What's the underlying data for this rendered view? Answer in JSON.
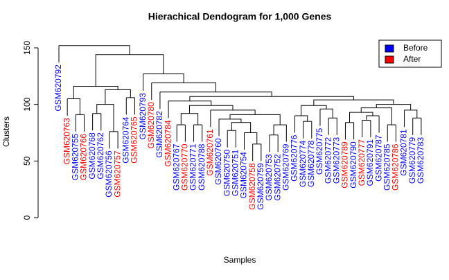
{
  "chart_data": {
    "type": "dendrogram",
    "title": "Hierachical Dendogram for 1,000 Genes",
    "x_label": "Samples",
    "y_label": "Clusters",
    "ylim": [
      0,
      150
    ],
    "yticks": [
      0,
      50,
      100,
      150
    ],
    "legend_position": "top-right",
    "legend": [
      {
        "name": "Before",
        "color": "#0000ff"
      },
      {
        "name": "After",
        "color": "#ff0000"
      }
    ],
    "tree": {
      "height": 152,
      "children": [
        {
          "label": "GSM620792",
          "group": "Before"
        },
        {
          "height": 144,
          "children": [
            {
              "height": 116,
              "children": [
                {
                  "height": 105,
                  "children": [
                    {
                      "label": "GSM620763",
                      "group": "After"
                    },
                    {
                      "height": 91,
                      "children": [
                        {
                          "label": "GSM620755",
                          "group": "Before"
                        },
                        {
                          "label": "GSM620766",
                          "group": "After"
                        }
                      ]
                    }
                  ]
                },
                {
                  "height": 113,
                  "children": [
                    {
                      "height": 100,
                      "children": [
                        {
                          "height": 92,
                          "children": [
                            {
                              "label": "GSM620768",
                              "group": "Before"
                            },
                            {
                              "label": "GSM620762",
                              "group": "Before"
                            }
                          ]
                        },
                        {
                          "height": 76,
                          "children": [
                            {
                              "label": "GSM620756",
                              "group": "Before"
                            },
                            {
                              "label": "GSM620757",
                              "group": "After"
                            }
                          ]
                        }
                      ]
                    },
                    {
                      "height": 106,
                      "children": [
                        {
                          "label": "GSM620764",
                          "group": "Before"
                        },
                        {
                          "label": "GSM620765",
                          "group": "After"
                        }
                      ]
                    }
                  ]
                }
              ]
            },
            {
              "height": 127,
              "children": [
                {
                  "label": "GSM620793",
                  "group": "Before"
                },
                {
                  "height": 119,
                  "children": [
                    {
                      "label": "GSM620780",
                      "group": "After"
                    },
                    {
                      "height": 111,
                      "children": [
                        {
                          "label": "GSM620782",
                          "group": "Before"
                        },
                        {
                          "height": 107,
                          "children": [
                            {
                              "height": 103,
                              "children": [
                                {
                                  "label": "GSM620784",
                                  "group": "After"
                                },
                                {
                                  "height": 99,
                                  "children": [
                                    {
                                      "height": 92,
                                      "children": [
                                        {
                                          "height": 82,
                                          "children": [
                                            {
                                              "label": "GSM620767",
                                              "group": "Before"
                                            },
                                            {
                                              "label": "GSM620770",
                                              "group": "After"
                                            }
                                          ]
                                        },
                                        {
                                          "height": 82,
                                          "children": [
                                            {
                                              "label": "GSM620771",
                                              "group": "Before"
                                            },
                                            {
                                              "label": "GSM620788",
                                              "group": "Before"
                                            }
                                          ]
                                        }
                                      ]
                                    },
                                    {
                                      "height": 95,
                                      "children": [
                                        {
                                          "label": "GSM620761",
                                          "group": "After"
                                        },
                                        {
                                          "height": 91,
                                          "children": [
                                            {
                                              "height": 87,
                                              "children": [
                                                {
                                                  "label": "GSM620760",
                                                  "group": "Before"
                                                },
                                                {
                                                  "height": 84,
                                                  "children": [
                                                    {
                                                      "height": 77,
                                                      "children": [
                                                        {
                                                          "label": "GSM620750",
                                                          "group": "Before"
                                                        },
                                                        {
                                                          "label": "GSM620751",
                                                          "group": "Before"
                                                        }
                                                      ]
                                                    },
                                                    {
                                                      "height": 75,
                                                      "children": [
                                                        {
                                                          "label": "GSM620754",
                                                          "group": "Before"
                                                        },
                                                        {
                                                          "height": 65,
                                                          "children": [
                                                            {
                                                              "label": "GSM620758",
                                                              "group": "After"
                                                            },
                                                            {
                                                              "label": "GSM620759",
                                                              "group": "Before"
                                                            }
                                                          ]
                                                        }
                                                      ]
                                                    }
                                                  ]
                                                }
                                              ]
                                            },
                                            {
                                              "height": 82,
                                              "children": [
                                                {
                                                  "height": 73,
                                                  "children": [
                                                    {
                                                      "label": "GSM620753",
                                                      "group": "Before"
                                                    },
                                                    {
                                                      "label": "GSM620752",
                                                      "group": "Before"
                                                    }
                                                  ]
                                                },
                                                {
                                                  "label": "GSM620769",
                                                  "group": "Before"
                                                }
                                              ]
                                            }
                                          ]
                                        }
                                      ]
                                    }
                                  ]
                                }
                              ]
                            },
                            {
                              "height": 104,
                              "children": [
                                {
                                  "height": 99,
                                  "children": [
                                    {
                                      "height": 90,
                                      "children": [
                                        {
                                          "label": "GSM620776",
                                          "group": "Before"
                                        },
                                        {
                                          "height": 85,
                                          "children": [
                                            {
                                              "label": "GSM620774",
                                              "group": "Before"
                                            },
                                            {
                                              "label": "GSM620778",
                                              "group": "Before"
                                            }
                                          ]
                                        }
                                      ]
                                    },
                                    {
                                      "height": 96,
                                      "children": [
                                        {
                                          "label": "GSM620775",
                                          "group": "Before"
                                        },
                                        {
                                          "height": 88,
                                          "children": [
                                            {
                                              "label": "GSM620772",
                                              "group": "Before"
                                            },
                                            {
                                              "label": "GSM620773",
                                              "group": "Before"
                                            }
                                          ]
                                        }
                                      ]
                                    }
                                  ]
                                },
                                {
                                  "height": 100,
                                  "children": [
                                    {
                                      "height": 97,
                                      "children": [
                                        {
                                          "height": 93,
                                          "children": [
                                            {
                                              "height": 84,
                                              "children": [
                                                {
                                                  "label": "GSM620789",
                                                  "group": "After"
                                                },
                                                {
                                                  "label": "GSM620790",
                                                  "group": "Before"
                                                }
                                              ]
                                            },
                                            {
                                              "height": 90,
                                              "children": [
                                                {
                                                  "height": 86,
                                                  "children": [
                                                    {
                                                      "label": "GSM620777",
                                                      "group": "After"
                                                    },
                                                    {
                                                      "label": "GSM620791",
                                                      "group": "Before"
                                                    }
                                                  ]
                                                },
                                                {
                                                  "label": "GSM620787",
                                                  "group": "Before"
                                                }
                                              ]
                                            }
                                          ]
                                        },
                                        {
                                          "height": 82,
                                          "children": [
                                            {
                                              "label": "GSM620785",
                                              "group": "Before"
                                            },
                                            {
                                              "label": "GSM620786",
                                              "group": "After"
                                            }
                                          ]
                                        }
                                      ]
                                    },
                                    {
                                      "height": 95,
                                      "children": [
                                        {
                                          "label": "GSM620781",
                                          "group": "Before"
                                        },
                                        {
                                          "height": 88,
                                          "children": [
                                            {
                                              "label": "GSM620779",
                                              "group": "Before"
                                            },
                                            {
                                              "label": "GSM620783",
                                              "group": "Before"
                                            }
                                          ]
                                        }
                                      ]
                                    }
                                  ]
                                }
                              ]
                            }
                          ]
                        }
                      ]
                    }
                  ]
                }
              ]
            }
          ]
        }
      ]
    }
  }
}
